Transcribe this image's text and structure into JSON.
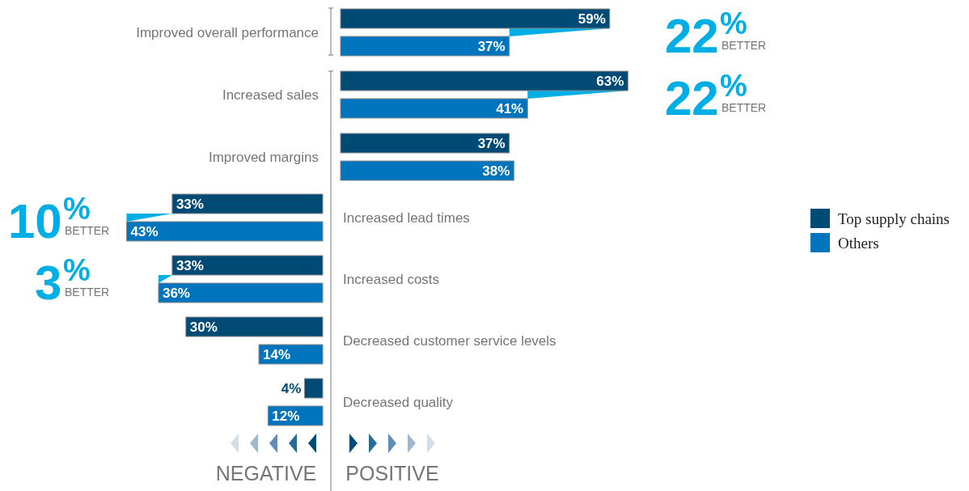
{
  "chart_data": [
    {
      "type": "bar",
      "orientation": "horizontal",
      "categories": [
        "Improved overall performance",
        "Increased sales",
        "Improved margins"
      ],
      "series": [
        {
          "color": "#004a76",
          "values": [
            59,
            63,
            37
          ],
          "value_labels": [
            "59%",
            "63%",
            "37%"
          ]
        },
        {
          "color": "#0074bc",
          "values": [
            37,
            41,
            38
          ],
          "value_labels": [
            "37%",
            "41%",
            "38%"
          ]
        }
      ],
      "annotations": [
        "22% BETTER",
        "22% BETTER",
        "POSITIVE"
      ]
    },
    {
      "type": "bar",
      "orientation": "horizontal",
      "categories": [
        "Increased lead times",
        "Increased costs",
        "Decreased customer service levels",
        "Decreased quality"
      ],
      "series": [
        {
          "name": "Top supply chains",
          "color": "#004a76",
          "values": [
            33,
            33,
            30,
            4
          ],
          "value_labels": [
            "33%",
            "33%",
            "30%",
            "4%"
          ]
        },
        {
          "name": "Others",
          "color": "#0074bc",
          "values": [
            43,
            36,
            14,
            12
          ],
          "value_labels": [
            "43%",
            "36%",
            "14%",
            "12%"
          ]
        }
      ],
      "legend": "right",
      "annotations": [
        "10% BETTER",
        "3% BETTER",
        "NEGATIVE"
      ]
    }
  ]
}
